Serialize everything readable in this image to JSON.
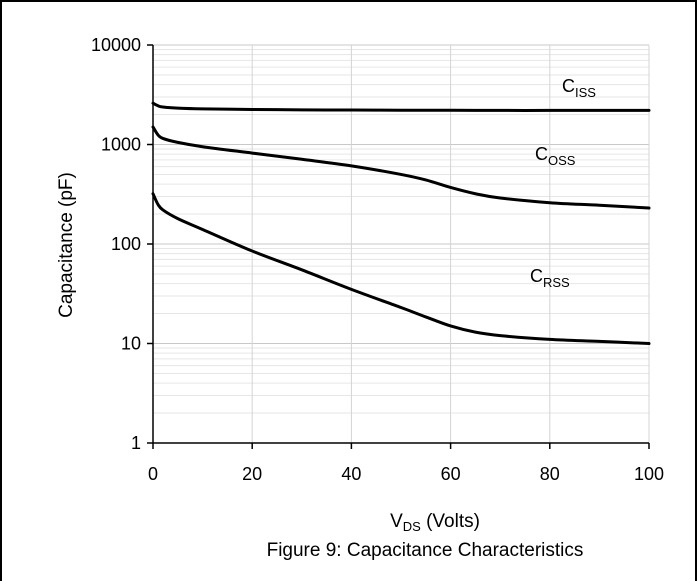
{
  "chart_data": {
    "type": "line",
    "caption": "Figure 9: Capacitance Characteristics",
    "xlabel": {
      "main": "V",
      "sub": "DS",
      "rest": " (Volts)"
    },
    "ylabel": "Capacitance (pF)",
    "x_scale": "linear",
    "y_scale": "log",
    "xlim": [
      0,
      100
    ],
    "ylim": [
      1,
      10000
    ],
    "x_ticks": [
      0,
      20,
      40,
      60,
      80,
      100
    ],
    "y_ticks": [
      1,
      10,
      100,
      1000,
      10000
    ],
    "grid": true,
    "series": [
      {
        "name": "Ciss",
        "label_main": "C",
        "label_sub": "ISS",
        "color": "#000000",
        "x": [
          0,
          1,
          2,
          5,
          10,
          20,
          30,
          40,
          50,
          60,
          70,
          80,
          90,
          100
        ],
        "y": [
          2600,
          2450,
          2380,
          2320,
          2280,
          2250,
          2230,
          2220,
          2210,
          2210,
          2200,
          2200,
          2200,
          2200
        ]
      },
      {
        "name": "Coss",
        "label_main": "C",
        "label_sub": "OSS",
        "color": "#000000",
        "x": [
          0,
          1,
          2,
          5,
          10,
          20,
          30,
          40,
          50,
          55,
          60,
          65,
          70,
          80,
          90,
          100
        ],
        "y": [
          1500,
          1250,
          1150,
          1050,
          950,
          820,
          710,
          610,
          500,
          440,
          370,
          320,
          290,
          260,
          245,
          230
        ]
      },
      {
        "name": "Crss",
        "label_main": "C",
        "label_sub": "RSS",
        "color": "#000000",
        "x": [
          0,
          1,
          2,
          5,
          10,
          20,
          30,
          40,
          50,
          55,
          60,
          65,
          70,
          80,
          90,
          100
        ],
        "y": [
          320,
          250,
          220,
          180,
          140,
          85,
          55,
          35,
          23,
          18.5,
          15,
          13,
          12,
          11,
          10.5,
          10
        ]
      }
    ]
  }
}
